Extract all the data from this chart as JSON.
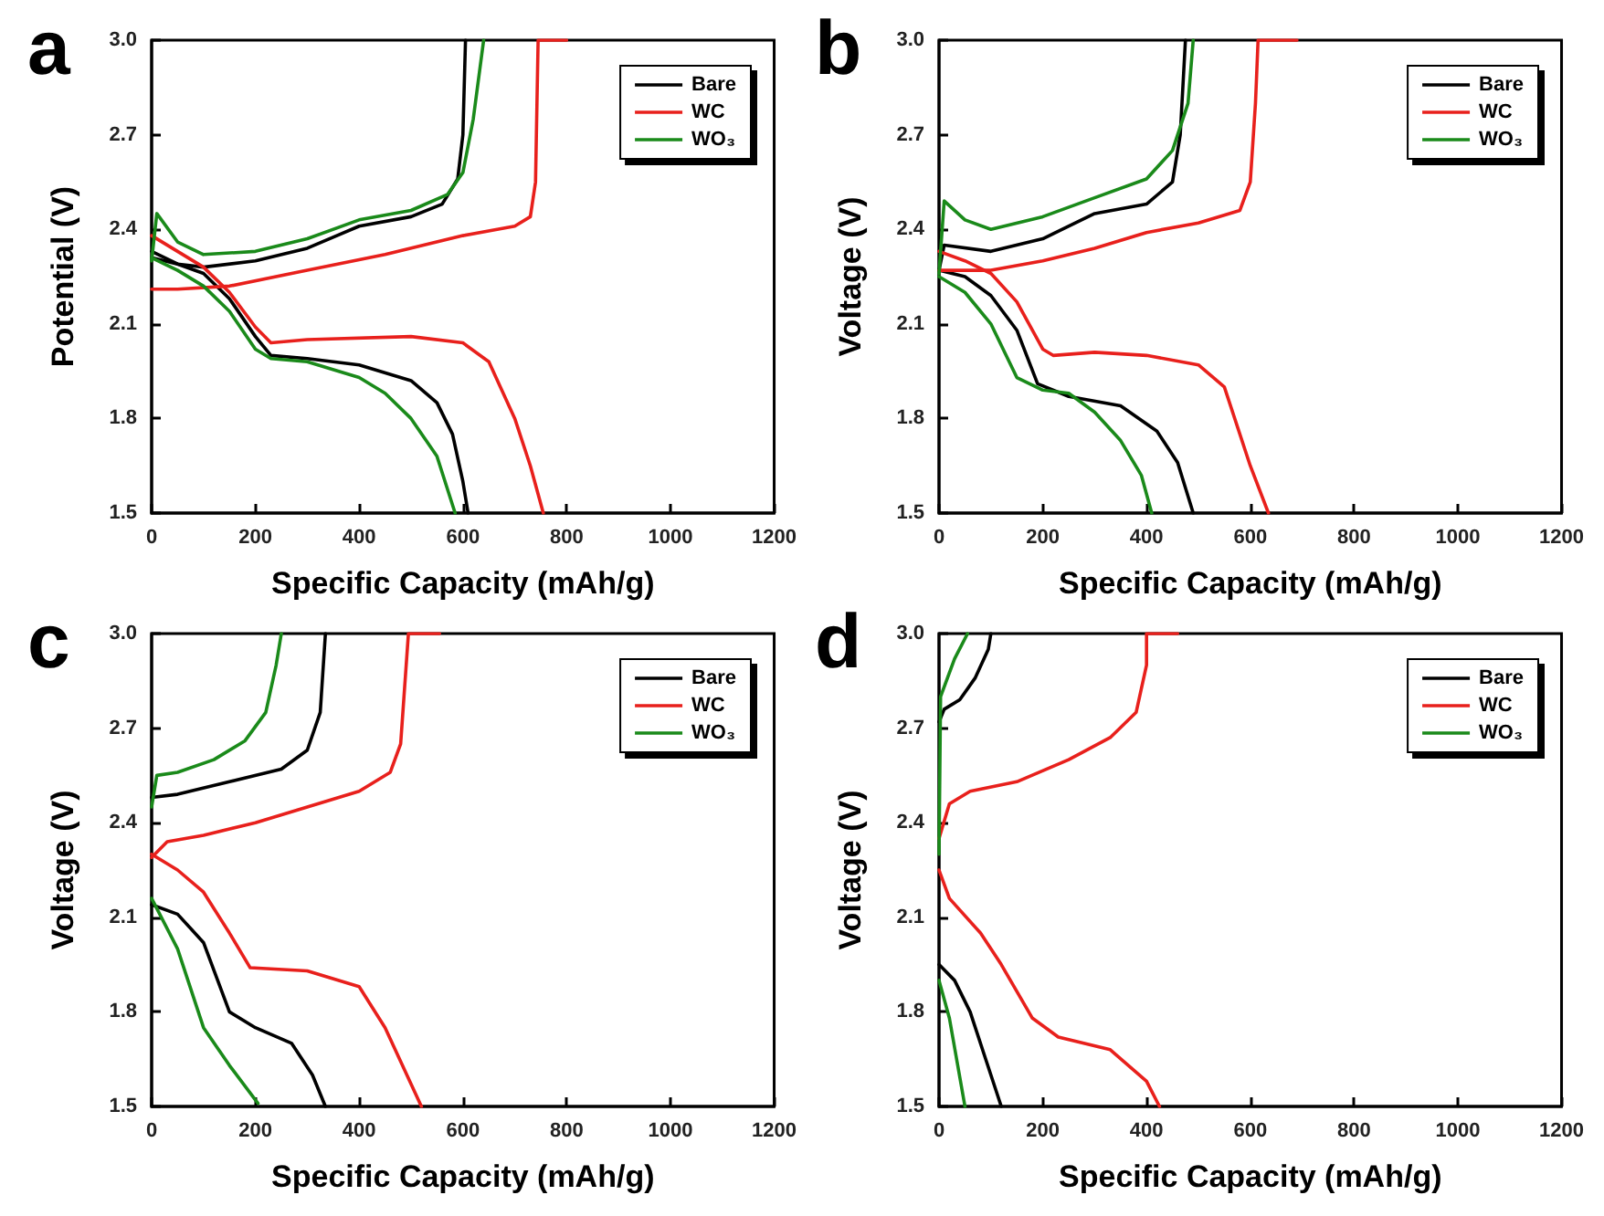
{
  "chart_data": [
    {
      "type": "line",
      "title": "a",
      "xlabel": "Specific Capacity (mAh/g)",
      "ylabel": "Potential (V)",
      "xlim": [
        0,
        1200
      ],
      "ylim": [
        1.5,
        3.0
      ],
      "xticks": [
        0,
        200,
        400,
        600,
        800,
        1000,
        1200
      ],
      "yticks": [
        {
          "value": 1.5,
          "label": "1.5"
        },
        {
          "value": 1.8,
          "label": "1.8"
        },
        {
          "value": 2.1,
          "label": "2.1"
        },
        {
          "value": 2.4,
          "label": "2.4"
        },
        {
          "value": 2.7,
          "label": "2.7"
        },
        {
          "value": 3.0,
          "label": "3.0"
        }
      ],
      "legend": "top right",
      "grid": false,
      "series": [
        {
          "name": "Bare",
          "color": "#000000",
          "x": [
            0,
            50,
            100,
            150,
            200,
            230,
            300,
            400,
            500,
            550,
            580,
            600,
            610
          ],
          "values": [
            2.33,
            2.29,
            2.26,
            2.18,
            2.06,
            2.0,
            1.99,
            1.97,
            1.92,
            1.85,
            1.75,
            1.6,
            1.5
          ]
        },
        {
          "color": "#000000",
          "x": [
            0,
            50,
            100,
            200,
            300,
            400,
            500,
            560,
            590,
            600,
            605
          ],
          "values": [
            2.31,
            2.29,
            2.28,
            2.3,
            2.34,
            2.41,
            2.44,
            2.48,
            2.56,
            2.7,
            3.0
          ]
        },
        {
          "name": "WC",
          "color": "#e8201c",
          "x": [
            0,
            50,
            100,
            150,
            200,
            230,
            300,
            500,
            600,
            650,
            700,
            730,
            755
          ],
          "values": [
            2.38,
            2.33,
            2.28,
            2.2,
            2.09,
            2.04,
            2.05,
            2.06,
            2.04,
            1.98,
            1.8,
            1.65,
            1.5
          ]
        },
        {
          "color": "#e8201c",
          "x": [
            0,
            50,
            150,
            300,
            450,
            600,
            700,
            730,
            740,
            745,
            800
          ],
          "values": [
            2.21,
            2.21,
            2.22,
            2.27,
            2.32,
            2.38,
            2.41,
            2.44,
            2.55,
            3.0,
            3.0
          ]
        },
        {
          "name": "WO₃",
          "color": "#1a8a1a",
          "x": [
            0,
            50,
            100,
            150,
            200,
            230,
            300,
            400,
            450,
            500,
            550,
            585
          ],
          "values": [
            2.31,
            2.27,
            2.22,
            2.14,
            2.02,
            1.99,
            1.98,
            1.93,
            1.88,
            1.8,
            1.68,
            1.5
          ]
        },
        {
          "color": "#1a8a1a",
          "x": [
            0,
            10,
            50,
            100,
            200,
            300,
            400,
            500,
            570,
            600,
            620,
            640
          ],
          "values": [
            2.3,
            2.45,
            2.36,
            2.32,
            2.33,
            2.37,
            2.43,
            2.46,
            2.51,
            2.58,
            2.75,
            3.0
          ]
        }
      ]
    },
    {
      "type": "line",
      "title": "b",
      "xlabel": "Specific Capacity (mAh/g)",
      "ylabel": "Voltage (V)",
      "xlim": [
        0,
        1200
      ],
      "ylim": [
        1.5,
        3.0
      ],
      "xticks": [
        0,
        200,
        400,
        600,
        800,
        1000,
        1200
      ],
      "yticks": [
        {
          "value": 1.5,
          "label": "1.5"
        },
        {
          "value": 1.8,
          "label": "1.8"
        },
        {
          "value": 2.1,
          "label": "2.1"
        },
        {
          "value": 2.4,
          "label": "2.4"
        },
        {
          "value": 2.7,
          "label": "2.7"
        },
        {
          "value": 3.0,
          "label": "3.0"
        }
      ],
      "legend": "top right",
      "grid": false,
      "series": [
        {
          "name": "Bare",
          "color": "#000000",
          "x": [
            0,
            50,
            100,
            150,
            190,
            250,
            350,
            420,
            460,
            490
          ],
          "values": [
            2.27,
            2.25,
            2.19,
            2.08,
            1.91,
            1.87,
            1.84,
            1.76,
            1.66,
            1.5
          ]
        },
        {
          "color": "#000000",
          "x": [
            0,
            10,
            100,
            200,
            300,
            400,
            450,
            465,
            475
          ],
          "values": [
            2.27,
            2.35,
            2.33,
            2.37,
            2.45,
            2.48,
            2.55,
            2.7,
            3.0
          ]
        },
        {
          "name": "WC",
          "color": "#e8201c",
          "x": [
            0,
            50,
            100,
            150,
            200,
            220,
            300,
            400,
            500,
            550,
            600,
            635
          ],
          "values": [
            2.33,
            2.3,
            2.26,
            2.17,
            2.02,
            2.0,
            2.01,
            2.0,
            1.97,
            1.9,
            1.65,
            1.5
          ]
        },
        {
          "color": "#e8201c",
          "x": [
            0,
            100,
            200,
            300,
            400,
            500,
            580,
            600,
            610,
            615,
            690
          ],
          "values": [
            2.27,
            2.27,
            2.3,
            2.34,
            2.39,
            2.42,
            2.46,
            2.55,
            2.8,
            3.0,
            3.0
          ]
        },
        {
          "name": "WO₃",
          "color": "#1a8a1a",
          "x": [
            0,
            50,
            100,
            150,
            200,
            250,
            300,
            350,
            390,
            410
          ],
          "values": [
            2.25,
            2.2,
            2.1,
            1.93,
            1.89,
            1.88,
            1.82,
            1.73,
            1.62,
            1.5
          ]
        },
        {
          "color": "#1a8a1a",
          "x": [
            0,
            10,
            50,
            100,
            200,
            300,
            400,
            450,
            480,
            490
          ],
          "values": [
            2.26,
            2.49,
            2.43,
            2.4,
            2.44,
            2.5,
            2.56,
            2.65,
            2.8,
            3.0
          ]
        }
      ]
    },
    {
      "type": "line",
      "title": "c",
      "xlabel": "Specific Capacity (mAh/g)",
      "ylabel": "Voltage (V)",
      "xlim": [
        0,
        1200
      ],
      "ylim": [
        1.5,
        3.0
      ],
      "xticks": [
        0,
        200,
        400,
        600,
        800,
        1000,
        1200
      ],
      "yticks": [
        {
          "value": 1.5,
          "label": "1.5"
        },
        {
          "value": 1.8,
          "label": "1.8"
        },
        {
          "value": 2.1,
          "label": "2.1"
        },
        {
          "value": 2.4,
          "label": "2.4"
        },
        {
          "value": 2.7,
          "label": "2.7"
        },
        {
          "value": 3.0,
          "label": "3.0"
        }
      ],
      "legend": "top right",
      "grid": false,
      "series": [
        {
          "name": "Bare",
          "color": "#000000",
          "x": [
            0,
            50,
            100,
            150,
            200,
            270,
            310,
            335
          ],
          "values": [
            2.14,
            2.11,
            2.02,
            1.8,
            1.75,
            1.7,
            1.6,
            1.5
          ]
        },
        {
          "color": "#000000",
          "x": [
            0,
            50,
            150,
            250,
            300,
            325,
            335
          ],
          "values": [
            2.48,
            2.49,
            2.53,
            2.57,
            2.63,
            2.75,
            3.0
          ]
        },
        {
          "name": "WC",
          "color": "#e8201c",
          "x": [
            0,
            50,
            100,
            150,
            190,
            300,
            400,
            450,
            520
          ],
          "values": [
            2.3,
            2.25,
            2.18,
            2.05,
            1.94,
            1.93,
            1.88,
            1.75,
            1.5
          ]
        },
        {
          "color": "#e8201c",
          "x": [
            0,
            30,
            100,
            200,
            300,
            400,
            460,
            480,
            495,
            555
          ],
          "values": [
            2.29,
            2.34,
            2.36,
            2.4,
            2.45,
            2.5,
            2.56,
            2.65,
            3.0,
            3.0
          ]
        },
        {
          "name": "WO₃",
          "color": "#1a8a1a",
          "x": [
            0,
            50,
            100,
            150,
            205
          ],
          "values": [
            2.16,
            2.0,
            1.75,
            1.63,
            1.51
          ]
        },
        {
          "color": "#1a8a1a",
          "x": [
            0,
            10,
            50,
            120,
            180,
            220,
            240,
            250
          ],
          "values": [
            2.45,
            2.55,
            2.56,
            2.6,
            2.66,
            2.75,
            2.9,
            3.0
          ]
        }
      ]
    },
    {
      "type": "line",
      "title": "d",
      "xlabel": "Specific Capacity (mAh/g)",
      "ylabel": "Voltage (V)",
      "xlim": [
        0,
        1200
      ],
      "ylim": [
        1.5,
        3.0
      ],
      "xticks": [
        0,
        200,
        400,
        600,
        800,
        1000,
        1200
      ],
      "yticks": [
        {
          "value": 1.5,
          "label": "1.5"
        },
        {
          "value": 1.8,
          "label": "1.8"
        },
        {
          "value": 2.1,
          "label": "2.1"
        },
        {
          "value": 2.4,
          "label": "2.4"
        },
        {
          "value": 2.7,
          "label": "2.7"
        },
        {
          "value": 3.0,
          "label": "3.0"
        }
      ],
      "legend": "top right",
      "grid": false,
      "series": [
        {
          "name": "Bare",
          "color": "#000000",
          "x": [
            0,
            30,
            60,
            90,
            120
          ],
          "values": [
            1.95,
            1.9,
            1.8,
            1.65,
            1.5
          ]
        },
        {
          "color": "#000000",
          "x": [
            0,
            10,
            40,
            70,
            95,
            100
          ],
          "values": [
            2.72,
            2.76,
            2.79,
            2.86,
            2.95,
            3.0
          ]
        },
        {
          "name": "WC",
          "color": "#e8201c",
          "x": [
            0,
            20,
            80,
            120,
            180,
            230,
            330,
            400,
            425
          ],
          "values": [
            2.25,
            2.16,
            2.05,
            1.95,
            1.78,
            1.72,
            1.68,
            1.58,
            1.5
          ]
        },
        {
          "color": "#e8201c",
          "x": [
            0,
            20,
            60,
            150,
            250,
            330,
            380,
            400,
            400,
            460
          ],
          "values": [
            2.35,
            2.46,
            2.5,
            2.53,
            2.6,
            2.67,
            2.75,
            2.9,
            3.0,
            3.0
          ]
        },
        {
          "name": "WO₃",
          "color": "#1a8a1a",
          "x": [
            0,
            20,
            50
          ],
          "values": [
            1.9,
            1.78,
            1.5
          ]
        },
        {
          "color": "#1a8a1a",
          "x": [
            0,
            3,
            30,
            55
          ],
          "values": [
            2.3,
            2.8,
            2.92,
            3.0
          ]
        }
      ]
    }
  ]
}
